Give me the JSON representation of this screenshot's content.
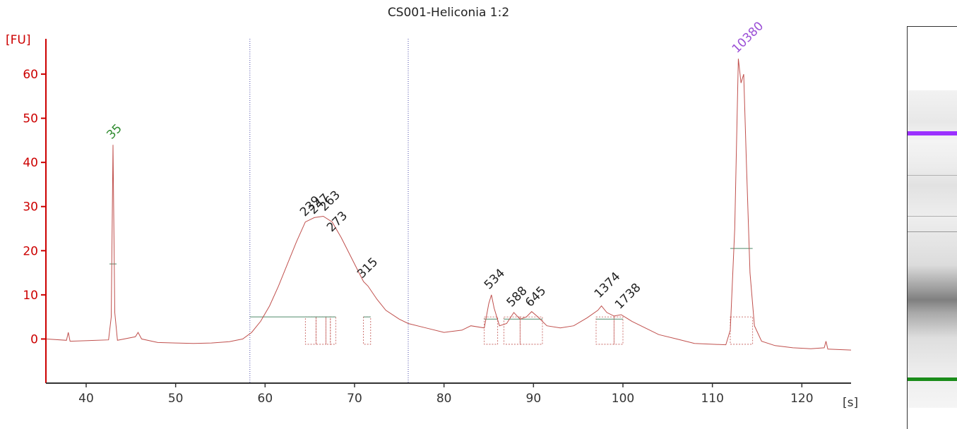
{
  "chart_data": {
    "type": "line",
    "title": "CS001-Heliconia 1:2",
    "ylabel": "[FU]",
    "xlabel": "[s]",
    "xlim": [
      35.5,
      125.5
    ],
    "ylim": [
      -10,
      68
    ],
    "xticks": [
      40,
      50,
      60,
      70,
      80,
      90,
      100,
      110,
      120
    ],
    "yticks": [
      0,
      10,
      20,
      30,
      40,
      50,
      60
    ],
    "axis_color": "#cc0000",
    "trace_color": "#c0504d",
    "series": [
      {
        "values": [
          [
            35.5,
            0
          ],
          [
            37.8,
            -0.3
          ],
          [
            38.0,
            1.5
          ],
          [
            38.2,
            -0.5
          ],
          [
            42.5,
            -0.2
          ],
          [
            42.8,
            5
          ],
          [
            43.0,
            44
          ],
          [
            43.2,
            6
          ],
          [
            43.5,
            -0.3
          ],
          [
            45.5,
            0.5
          ],
          [
            45.8,
            1.5
          ],
          [
            46.2,
            0
          ],
          [
            48,
            -0.8
          ],
          [
            50,
            -0.9
          ],
          [
            52,
            -1
          ],
          [
            54,
            -0.9
          ],
          [
            56,
            -0.6
          ],
          [
            57.5,
            0
          ],
          [
            58.5,
            1.5
          ],
          [
            59.5,
            4
          ],
          [
            60.5,
            7.5
          ],
          [
            61.5,
            12
          ],
          [
            62.5,
            17
          ],
          [
            63.5,
            22
          ],
          [
            64.5,
            26.5
          ],
          [
            65.5,
            27.5
          ],
          [
            66.5,
            27.8
          ],
          [
            67.5,
            26.5
          ],
          [
            68.5,
            23
          ],
          [
            69.5,
            19
          ],
          [
            70.5,
            15
          ],
          [
            71.0,
            13
          ],
          [
            71.5,
            12
          ],
          [
            72.5,
            9
          ],
          [
            73.5,
            6.5
          ],
          [
            75,
            4.5
          ],
          [
            76,
            3.5
          ],
          [
            78,
            2.5
          ],
          [
            80,
            1.5
          ],
          [
            82,
            2
          ],
          [
            83,
            3
          ],
          [
            84.5,
            2.5
          ],
          [
            85.0,
            8
          ],
          [
            85.3,
            10
          ],
          [
            85.6,
            7
          ],
          [
            86.2,
            3
          ],
          [
            87.0,
            3.5
          ],
          [
            87.8,
            6
          ],
          [
            88.5,
            4.5
          ],
          [
            89.2,
            5
          ],
          [
            89.8,
            6.2
          ],
          [
            90.5,
            5
          ],
          [
            91.5,
            3
          ],
          [
            93,
            2.5
          ],
          [
            94.5,
            3
          ],
          [
            96,
            4.8
          ],
          [
            97.2,
            6.5
          ],
          [
            97.6,
            7.5
          ],
          [
            98.2,
            6
          ],
          [
            99,
            5.2
          ],
          [
            99.8,
            5.5
          ],
          [
            101,
            4
          ],
          [
            102.5,
            2.5
          ],
          [
            104,
            1
          ],
          [
            106,
            0
          ],
          [
            108,
            -1
          ],
          [
            110,
            -1.2
          ],
          [
            111.5,
            -1.3
          ],
          [
            112.0,
            2
          ],
          [
            112.5,
            25
          ],
          [
            112.9,
            63.5
          ],
          [
            113.2,
            58
          ],
          [
            113.5,
            60
          ],
          [
            113.8,
            40
          ],
          [
            114.2,
            15
          ],
          [
            114.7,
            3
          ],
          [
            115.5,
            -0.5
          ],
          [
            117,
            -1.5
          ],
          [
            119,
            -2
          ],
          [
            121,
            -2.2
          ],
          [
            122.5,
            -2
          ],
          [
            122.7,
            -0.5
          ],
          [
            122.9,
            -2.3
          ],
          [
            125.5,
            -2.5
          ]
        ]
      }
    ],
    "region_bounds": [
      58.3,
      76.0
    ],
    "baseline_segments": [
      {
        "x1": 58.3,
        "x2": 67.9,
        "y": 5
      },
      {
        "x1": 71.0,
        "x2": 71.8,
        "y": 5
      },
      {
        "x1": 84.5,
        "x2": 86.0,
        "y": 4.5
      },
      {
        "x1": 86.7,
        "x2": 91.0,
        "y": 4.5
      },
      {
        "x1": 97.0,
        "x2": 100.0,
        "y": 4.5
      },
      {
        "x1": 42.6,
        "x2": 43.4,
        "y": 17
      },
      {
        "x1": 112.0,
        "x2": 114.5,
        "y": 20.5
      }
    ],
    "peaks": [
      {
        "label": "35",
        "x": 43.0,
        "y": 44.5,
        "color": "#2e8b2e"
      },
      {
        "label": "239",
        "x": 64.6,
        "y": 27,
        "color": "#222222"
      },
      {
        "label": "247",
        "x": 65.6,
        "y": 27.5,
        "color": "#222222"
      },
      {
        "label": "263",
        "x": 66.8,
        "y": 28.2,
        "color": "#222222"
      },
      {
        "label": "273",
        "x": 67.6,
        "y": 23.5,
        "color": "#222222"
      },
      {
        "label": "315",
        "x": 71.0,
        "y": 13,
        "color": "#222222"
      },
      {
        "label": "534",
        "x": 85.2,
        "y": 10.5,
        "color": "#222222"
      },
      {
        "label": "588",
        "x": 87.7,
        "y": 6.5,
        "color": "#222222"
      },
      {
        "label": "645",
        "x": 89.8,
        "y": 6.5,
        "color": "#222222"
      },
      {
        "label": "1374",
        "x": 97.5,
        "y": 8.5,
        "color": "#222222"
      },
      {
        "label": "1738",
        "x": 99.8,
        "y": 6,
        "color": "#222222"
      },
      {
        "label": "10380",
        "x": 112.9,
        "y": 64,
        "color": "#9b4fd6"
      }
    ],
    "peak_windows": [
      [
        64.5,
        65.7
      ],
      [
        65.7,
        66.8
      ],
      [
        66.8,
        67.3
      ],
      [
        67.3,
        67.9
      ],
      [
        71.0,
        71.8
      ],
      [
        84.5,
        86.0
      ],
      [
        86.7,
        88.5
      ],
      [
        88.5,
        91.0
      ],
      [
        97.0,
        99.0
      ],
      [
        99.0,
        100.0
      ],
      [
        112.0,
        114.5
      ]
    ]
  },
  "gel": {
    "upper_marker_color": "#9b30ff",
    "lower_marker_color": "#1a8c1a"
  }
}
